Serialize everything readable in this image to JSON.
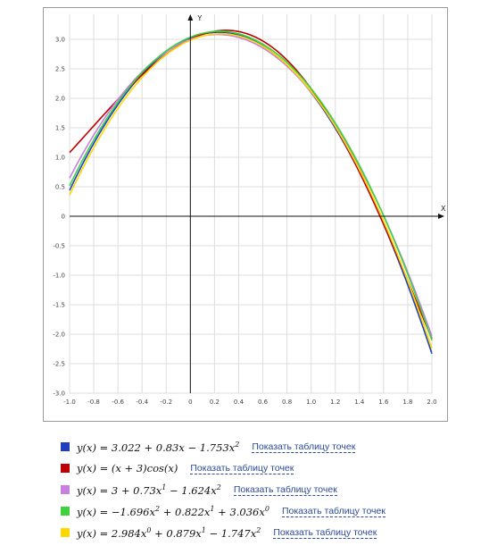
{
  "chart_data": {
    "type": "line",
    "xlabel": "X",
    "ylabel": "Y",
    "xlim": [
      -1.0,
      2.0
    ],
    "ylim": [
      -3.0,
      3.2
    ],
    "x_ticks": [
      "-1.0",
      "-0.8",
      "-0.6",
      "-0.4",
      "-0.2",
      "0",
      "0.2",
      "0.4",
      "0.6",
      "0.8",
      "1.0",
      "1.2",
      "1.4",
      "1.6",
      "1.8",
      "2.0"
    ],
    "y_ticks": [
      "3.0",
      "2.5",
      "2.0",
      "1.5",
      "1.0",
      "0.5",
      "0",
      "-0.5",
      "-1.0",
      "-1.5",
      "-2.0",
      "-2.5",
      "-3.0"
    ],
    "grid": true,
    "series": [
      {
        "name": "y(x) = 3.022 + 0.83x − 1.753x²",
        "color": "#1f3fbf",
        "coeffs": [
          3.022,
          0.83,
          -1.753
        ]
      },
      {
        "name": "y(x) = (x + 3)cos(x)",
        "color": "#c00000",
        "func": "(x+3)cos(x)"
      },
      {
        "name": "y(x) = 3 + 0.73x¹ − 1.624x²",
        "color": "#c77fe0",
        "coeffs": [
          3.0,
          0.73,
          -1.624
        ]
      },
      {
        "name": "y(x) = −1.696x² + 0.822x¹ + 3.036x⁰",
        "color": "#3ed23e",
        "coeffs": [
          3.036,
          0.822,
          -1.696
        ]
      },
      {
        "name": "y(x) = 2.984x⁰ + 0.879x¹ − 1.747x²",
        "color": "#ffd700",
        "coeffs": [
          2.984,
          0.879,
          -1.747
        ]
      }
    ]
  },
  "legend": {
    "items": [
      {
        "color": "#1f3fbf",
        "formula": [
          [
            "y(x) = 3.022 + 0.83x − 1.753x",
            ""
          ],
          [
            "",
            "2"
          ]
        ],
        "link": "Показать таблицу точек"
      },
      {
        "color": "#c00000",
        "formula": [
          [
            "y(x) = (x + 3)cos(x)",
            ""
          ]
        ],
        "link": "Показать таблицу точек"
      },
      {
        "color": "#c77fe0",
        "formula": [
          [
            "y(x) = 3 + 0.73x",
            ""
          ],
          [
            "",
            "1"
          ],
          [
            " − 1.624x",
            ""
          ],
          [
            "",
            "2"
          ]
        ],
        "link": "Показать таблицу точек"
      },
      {
        "color": "#3ed23e",
        "formula": [
          [
            "y(x) = −1.696x",
            ""
          ],
          [
            "",
            "2"
          ],
          [
            " + 0.822x",
            ""
          ],
          [
            "",
            "1"
          ],
          [
            " + 3.036x",
            ""
          ],
          [
            "",
            "0"
          ]
        ],
        "link": "Показать таблицу точек"
      },
      {
        "color": "#ffd700",
        "formula": [
          [
            "y(x) = 2.984x",
            ""
          ],
          [
            "",
            "0"
          ],
          [
            " + 0.879x",
            ""
          ],
          [
            "",
            "1"
          ],
          [
            " − 1.747x",
            ""
          ],
          [
            "",
            "2"
          ]
        ],
        "link": "Показать таблицу точек"
      }
    ]
  }
}
